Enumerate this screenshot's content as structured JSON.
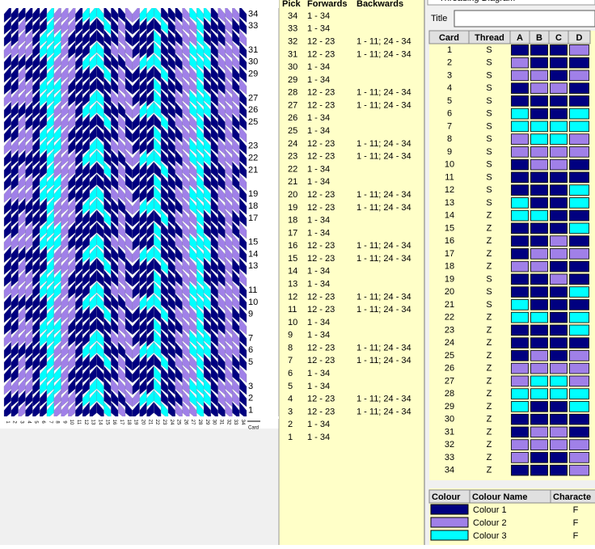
{
  "pattern": {
    "row_labels": [
      34,
      33,
      31,
      30,
      29,
      27,
      26,
      25,
      23,
      22,
      21,
      19,
      18,
      17,
      15,
      14,
      13,
      11,
      10,
      9,
      7,
      6,
      5,
      3,
      2,
      1
    ],
    "card_labels": [
      1,
      2,
      3,
      4,
      5,
      6,
      7,
      8,
      9,
      10,
      11,
      12,
      13,
      14,
      15,
      16,
      17,
      18,
      19,
      20,
      21,
      22,
      23,
      24,
      25,
      26,
      27,
      28,
      29,
      30,
      31,
      32,
      33,
      34
    ],
    "card_axis_label": "Card"
  },
  "picks": {
    "headers": [
      "Pick",
      "Forwards",
      "Backwards"
    ],
    "rows": [
      {
        "pick": 34,
        "forwards": "1 - 34"
      },
      {
        "pick": 33,
        "forwards": "1 - 34"
      },
      {
        "pick": 32,
        "forwards": "12 - 23",
        "backwards": "1 - 11; 24 - 34"
      },
      {
        "pick": 31,
        "forwards": "12 - 23",
        "backwards": "1 - 11; 24 - 34"
      },
      {
        "pick": 30,
        "forwards": "1 - 34"
      },
      {
        "pick": 29,
        "forwards": "1 - 34"
      },
      {
        "pick": 28,
        "forwards": "12 - 23",
        "backwards": "1 - 11; 24 - 34"
      },
      {
        "pick": 27,
        "forwards": "12 - 23",
        "backwards": "1 - 11; 24 - 34"
      },
      {
        "pick": 26,
        "forwards": "1 - 34"
      },
      {
        "pick": 25,
        "forwards": "1 - 34"
      },
      {
        "pick": 24,
        "forwards": "12 - 23",
        "backwards": "1 - 11; 24 - 34"
      },
      {
        "pick": 23,
        "forwards": "12 - 23",
        "backwards": "1 - 11; 24 - 34"
      },
      {
        "pick": 22,
        "forwards": "1 - 34"
      },
      {
        "pick": 21,
        "forwards": "1 - 34"
      },
      {
        "pick": 20,
        "forwards": "12 - 23",
        "backwards": "1 - 11; 24 - 34"
      },
      {
        "pick": 19,
        "forwards": "12 - 23",
        "backwards": "1 - 11; 24 - 34"
      },
      {
        "pick": 18,
        "forwards": "1 - 34"
      },
      {
        "pick": 17,
        "forwards": "1 - 34"
      },
      {
        "pick": 16,
        "forwards": "12 - 23",
        "backwards": "1 - 11; 24 - 34"
      },
      {
        "pick": 15,
        "forwards": "12 - 23",
        "backwards": "1 - 11; 24 - 34"
      },
      {
        "pick": 14,
        "forwards": "1 - 34"
      },
      {
        "pick": 13,
        "forwards": "1 - 34"
      },
      {
        "pick": 12,
        "forwards": "12 - 23",
        "backwards": "1 - 11; 24 - 34"
      },
      {
        "pick": 11,
        "forwards": "12 - 23",
        "backwards": "1 - 11; 24 - 34"
      },
      {
        "pick": 10,
        "forwards": "1 - 34"
      },
      {
        "pick": 9,
        "forwards": "1 - 34"
      },
      {
        "pick": 8,
        "forwards": "12 - 23",
        "backwards": "1 - 11; 24 - 34"
      },
      {
        "pick": 7,
        "forwards": "12 - 23",
        "backwards": "1 - 11; 24 - 34"
      },
      {
        "pick": 6,
        "forwards": "1 - 34"
      },
      {
        "pick": 5,
        "forwards": "1 - 34"
      },
      {
        "pick": 4,
        "forwards": "12 - 23",
        "backwards": "1 - 11; 24 - 34"
      },
      {
        "pick": 3,
        "forwards": "12 - 23",
        "backwards": "1 - 11; 24 - 34"
      },
      {
        "pick": 2,
        "forwards": "1 - 34"
      },
      {
        "pick": 1,
        "forwards": "1 - 34"
      }
    ]
  },
  "threading": {
    "window_title": "Threading Diagram",
    "title_label": "Title",
    "headers": [
      "Card",
      "Thread",
      "A",
      "B",
      "C",
      "D"
    ],
    "rows": [
      {
        "card": 1,
        "thread": "S",
        "holes": [
          "#000080",
          "#000080",
          "#000080",
          "#a080e8"
        ]
      },
      {
        "card": 2,
        "thread": "S",
        "holes": [
          "#a080e8",
          "#000080",
          "#000080",
          "#000080"
        ]
      },
      {
        "card": 3,
        "thread": "S",
        "holes": [
          "#a080e8",
          "#a080e8",
          "#000080",
          "#a080e8"
        ]
      },
      {
        "card": 4,
        "thread": "S",
        "holes": [
          "#000080",
          "#a080e8",
          "#a080e8",
          "#000080"
        ]
      },
      {
        "card": 5,
        "thread": "S",
        "holes": [
          "#000080",
          "#000080",
          "#000080",
          "#000080"
        ]
      },
      {
        "card": 6,
        "thread": "S",
        "holes": [
          "#00ffff",
          "#000080",
          "#000080",
          "#00ffff"
        ]
      },
      {
        "card": 7,
        "thread": "S",
        "holes": [
          "#00ffff",
          "#00ffff",
          "#00ffff",
          "#00ffff"
        ]
      },
      {
        "card": 8,
        "thread": "S",
        "holes": [
          "#a080e8",
          "#00ffff",
          "#00ffff",
          "#a080e8"
        ]
      },
      {
        "card": 9,
        "thread": "S",
        "holes": [
          "#a080e8",
          "#a080e8",
          "#a080e8",
          "#a080e8"
        ]
      },
      {
        "card": 10,
        "thread": "S",
        "holes": [
          "#000080",
          "#a080e8",
          "#a080e8",
          "#000080"
        ]
      },
      {
        "card": 11,
        "thread": "S",
        "holes": [
          "#000080",
          "#000080",
          "#000080",
          "#000080"
        ]
      },
      {
        "card": 12,
        "thread": "S",
        "holes": [
          "#000080",
          "#000080",
          "#000080",
          "#00ffff"
        ]
      },
      {
        "card": 13,
        "thread": "S",
        "holes": [
          "#00ffff",
          "#000080",
          "#000080",
          "#00ffff"
        ]
      },
      {
        "card": 14,
        "thread": "Z",
        "holes": [
          "#00ffff",
          "#00ffff",
          "#000080",
          "#000080"
        ]
      },
      {
        "card": 15,
        "thread": "Z",
        "holes": [
          "#000080",
          "#000080",
          "#000080",
          "#00ffff"
        ]
      },
      {
        "card": 16,
        "thread": "Z",
        "holes": [
          "#000080",
          "#000080",
          "#a080e8",
          "#000080"
        ]
      },
      {
        "card": 17,
        "thread": "Z",
        "holes": [
          "#000080",
          "#a080e8",
          "#a080e8",
          "#a080e8"
        ]
      },
      {
        "card": 18,
        "thread": "Z",
        "holes": [
          "#a080e8",
          "#a080e8",
          "#000080",
          "#000080"
        ]
      },
      {
        "card": 19,
        "thread": "S",
        "holes": [
          "#000080",
          "#000080",
          "#a080e8",
          "#000080"
        ]
      },
      {
        "card": 20,
        "thread": "S",
        "holes": [
          "#000080",
          "#000080",
          "#000080",
          "#00ffff"
        ]
      },
      {
        "card": 21,
        "thread": "S",
        "holes": [
          "#00ffff",
          "#000080",
          "#000080",
          "#000080"
        ]
      },
      {
        "card": 22,
        "thread": "Z",
        "holes": [
          "#00ffff",
          "#00ffff",
          "#000080",
          "#00ffff"
        ]
      },
      {
        "card": 23,
        "thread": "Z",
        "holes": [
          "#000080",
          "#000080",
          "#000080",
          "#00ffff"
        ]
      },
      {
        "card": 24,
        "thread": "Z",
        "holes": [
          "#000080",
          "#000080",
          "#000080",
          "#000080"
        ]
      },
      {
        "card": 25,
        "thread": "Z",
        "holes": [
          "#000080",
          "#a080e8",
          "#000080",
          "#a080e8"
        ]
      },
      {
        "card": 26,
        "thread": "Z",
        "holes": [
          "#a080e8",
          "#a080e8",
          "#a080e8",
          "#a080e8"
        ]
      },
      {
        "card": 27,
        "thread": "Z",
        "holes": [
          "#a080e8",
          "#00ffff",
          "#00ffff",
          "#a080e8"
        ]
      },
      {
        "card": 28,
        "thread": "Z",
        "holes": [
          "#00ffff",
          "#00ffff",
          "#00ffff",
          "#00ffff"
        ]
      },
      {
        "card": 29,
        "thread": "Z",
        "holes": [
          "#00ffff",
          "#000080",
          "#000080",
          "#00ffff"
        ]
      },
      {
        "card": 30,
        "thread": "Z",
        "holes": [
          "#000080",
          "#000080",
          "#000080",
          "#000080"
        ]
      },
      {
        "card": 31,
        "thread": "Z",
        "holes": [
          "#000080",
          "#a080e8",
          "#a080e8",
          "#000080"
        ]
      },
      {
        "card": 32,
        "thread": "Z",
        "holes": [
          "#a080e8",
          "#a080e8",
          "#a080e8",
          "#a080e8"
        ]
      },
      {
        "card": 33,
        "thread": "Z",
        "holes": [
          "#a080e8",
          "#000080",
          "#000080",
          "#a080e8"
        ]
      },
      {
        "card": 34,
        "thread": "Z",
        "holes": [
          "#000080",
          "#000080",
          "#000080",
          "#a080e8"
        ]
      }
    ]
  },
  "colours": {
    "headers": [
      "Colour",
      "Colour Name",
      "Characte"
    ],
    "rows": [
      {
        "color": "#000080",
        "name": "Colour 1",
        "character": "F"
      },
      {
        "color": "#a080e8",
        "name": "Colour 2",
        "character": "F"
      },
      {
        "color": "#00ffff",
        "name": "Colour 3",
        "character": "F"
      }
    ]
  }
}
